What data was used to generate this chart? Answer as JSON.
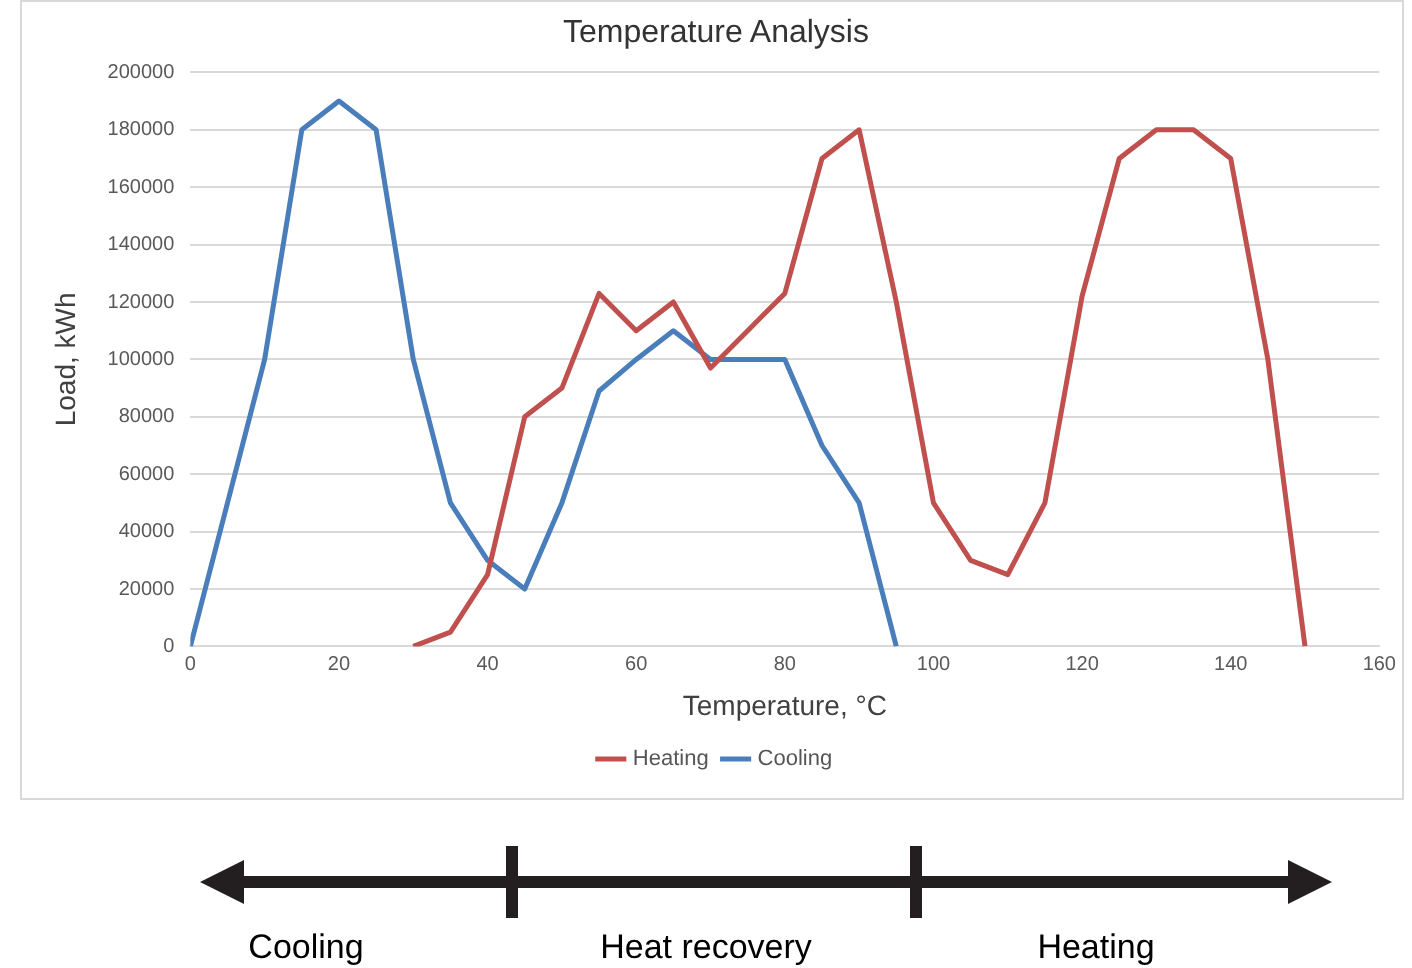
{
  "chart_data": {
    "type": "line",
    "title": "Temperature Analysis",
    "xlabel": "Temperature, °C",
    "ylabel": "Load, kWh",
    "xlim": [
      0,
      160
    ],
    "xticks": [
      0,
      20,
      40,
      60,
      80,
      100,
      120,
      140,
      160
    ],
    "ylim": [
      0,
      200000
    ],
    "yticks": [
      0,
      20000,
      40000,
      60000,
      80000,
      100000,
      120000,
      140000,
      160000,
      180000,
      200000
    ],
    "grid": "y",
    "legend": "bottom",
    "marker": "none",
    "line_style": "solid",
    "series": [
      {
        "name": "Heating",
        "color": "#c0504d",
        "x": [
          30,
          35,
          40,
          45,
          50,
          55,
          60,
          65,
          70,
          75,
          80,
          85,
          90,
          95,
          100,
          105,
          110,
          115,
          120,
          125,
          130,
          135,
          140,
          145,
          150
        ],
        "values": [
          0,
          5000,
          25000,
          80000,
          90000,
          123000,
          110000,
          120000,
          97000,
          110000,
          123000,
          170000,
          180000,
          120000,
          50000,
          30000,
          25000,
          50000,
          122000,
          170000,
          180000,
          180000,
          170000,
          100000,
          0
        ]
      },
      {
        "name": "Cooling",
        "color": "#4a7ebb",
        "x": [
          0,
          5,
          10,
          15,
          20,
          25,
          30,
          35,
          40,
          45,
          50,
          55,
          60,
          65,
          70,
          75,
          80,
          85,
          90,
          95
        ],
        "values": [
          0,
          50000,
          100000,
          180000,
          190000,
          180000,
          100000,
          50000,
          30000,
          20000,
          50000,
          89000,
          100000,
          110000,
          100000,
          100000,
          100000,
          70000,
          50000,
          0
        ]
      }
    ],
    "annotations": [
      "Cooling",
      "Heat recovery",
      "Heating"
    ]
  }
}
